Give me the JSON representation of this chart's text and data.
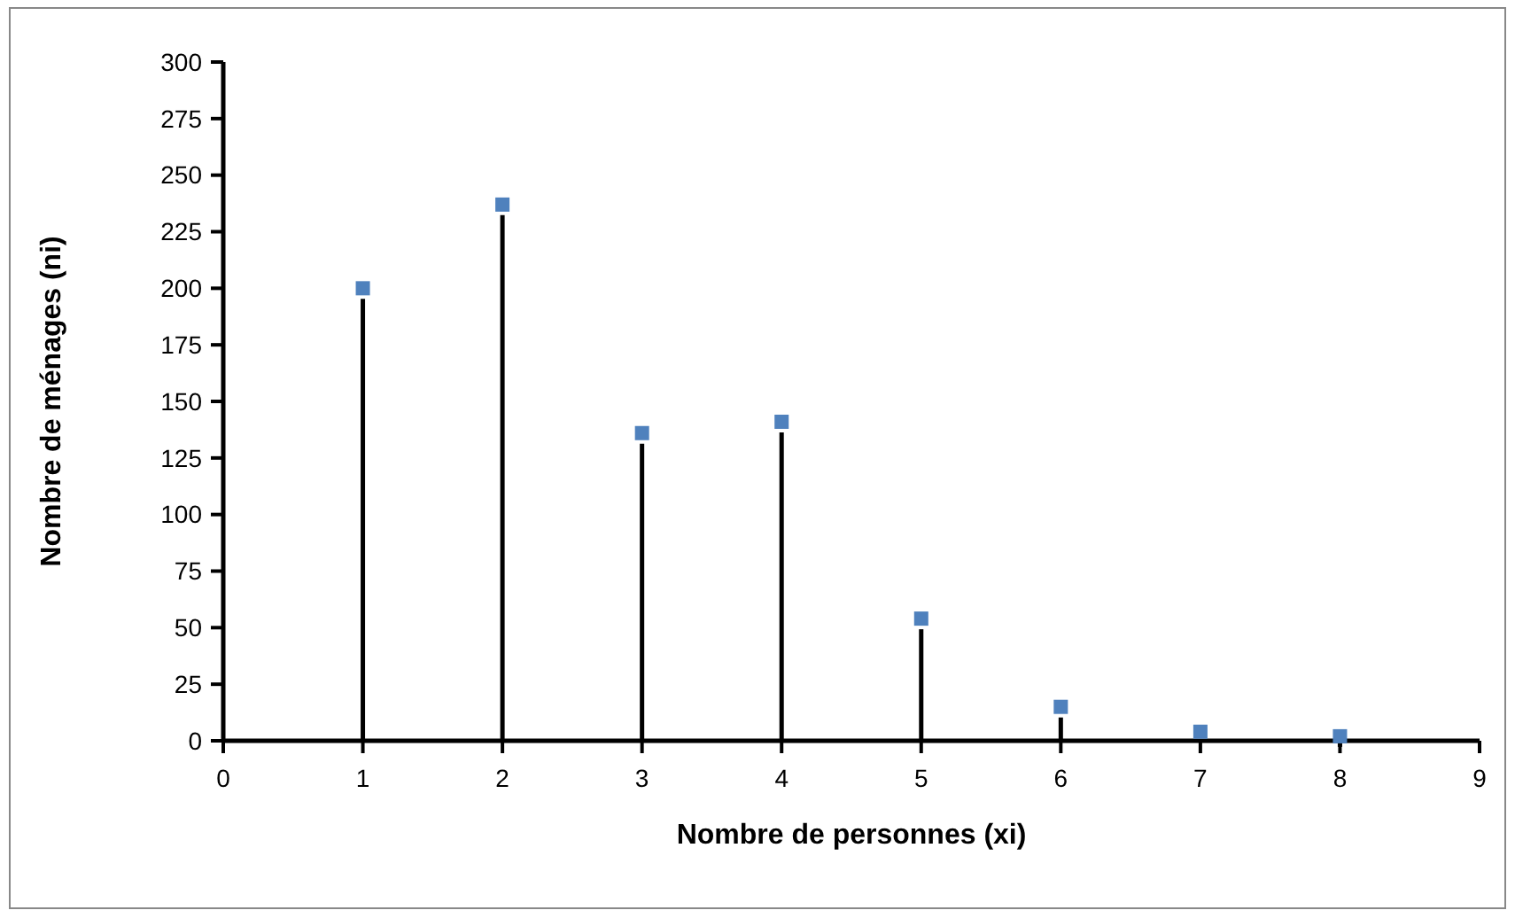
{
  "chart_data": {
    "type": "lollipop",
    "xlabel": "Nombre de personnes (xi)",
    "ylabel": "Nombre de ménages (ni)",
    "x": [
      1,
      2,
      3,
      4,
      5,
      6,
      7,
      8
    ],
    "series": [
      {
        "color": "#4f81bd",
        "values": [
          200,
          237,
          136,
          141,
          54,
          15,
          4,
          2
        ]
      }
    ],
    "xlim": [
      0,
      9
    ],
    "xticks": [
      0,
      1,
      2,
      3,
      4,
      5,
      6,
      7,
      8,
      9
    ],
    "ylim": [
      0,
      300
    ],
    "yticks": [
      0,
      25,
      50,
      75,
      100,
      125,
      150,
      175,
      200,
      225,
      250,
      275,
      300
    ],
    "marker": "square"
  }
}
